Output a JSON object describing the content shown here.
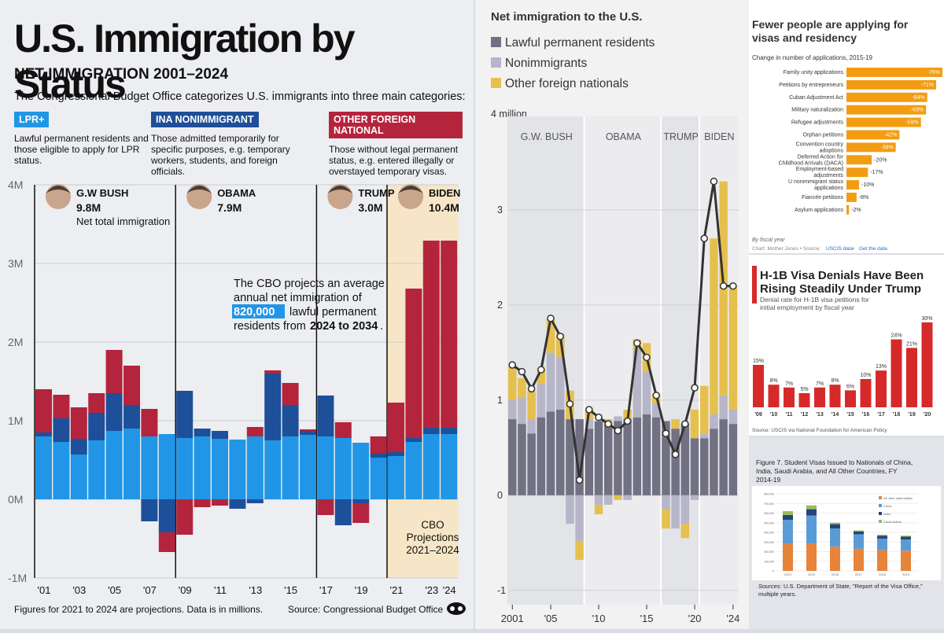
{
  "left_panel": {
    "title": "U.S. Immigration by Status",
    "subtitle": "NET IMMIGRATION 2001–2024",
    "intro": "The Congressional Budget Office categorizes U.S. immigrants into three main categories:",
    "categories": [
      {
        "tag": "LPR+",
        "color": "#2196e6",
        "desc": "Lawful permanent residents and those eligible to apply for LPR status."
      },
      {
        "tag": "INA NONIMMIGRANT",
        "color": "#1e4f99",
        "desc": "Those admitted temporarily for specific purposes, e.g. temporary workers, students, and foreign officials."
      },
      {
        "tag": "OTHER FOREIGN NATIONAL",
        "color": "#b5243d",
        "desc": "Those without legal permanent status, e.g. entered illegally or overstayed temporary visas."
      }
    ],
    "callout": {
      "line1": "The CBO projects an average",
      "line2": "annual net immigration of",
      "highlight": "820,000",
      "line3": "lawful permanent",
      "line4": "residents from ",
      "line4b": "2024 to 2034",
      "line4c": "."
    },
    "projection_label": [
      "CBO",
      "Projections",
      "2021–2024"
    ],
    "footnote": "Figures for 2021 to 2024 are projections. Data is in millions.",
    "source": "Source: Congressional Budget Office",
    "net_total_label": "Net total immigration"
  },
  "chart_data": [
    {
      "type": "bar",
      "title": "NET IMMIGRATION 2001–2024",
      "categories": [
        "2001",
        "2002",
        "2003",
        "2004",
        "2005",
        "2006",
        "2007",
        "2008",
        "2009",
        "2010",
        "2011",
        "2012",
        "2013",
        "2014",
        "2015",
        "2016",
        "2017",
        "2018",
        "2019",
        "2020",
        "2021",
        "2022",
        "2023",
        "2024"
      ],
      "tick_labels": [
        "'01",
        "",
        "'03",
        "",
        "'05",
        "",
        "'07",
        "",
        "'09",
        "",
        "'11",
        "",
        "'13",
        "",
        "'15",
        "",
        "'17",
        "",
        "'19",
        "",
        "'21",
        "",
        "'23",
        "'24"
      ],
      "series": [
        {
          "name": "LPR+",
          "color": "#2196e6",
          "values": [
            0.8,
            0.73,
            0.57,
            0.75,
            0.87,
            0.9,
            0.8,
            0.83,
            0.78,
            0.8,
            0.77,
            0.76,
            0.8,
            0.75,
            0.8,
            0.82,
            0.8,
            0.78,
            0.72,
            0.53,
            0.55,
            0.73,
            0.83,
            0.83
          ]
        },
        {
          "name": "INA NONIMMIGRANT",
          "color": "#1e4f99",
          "values": [
            0.05,
            0.3,
            0.2,
            0.35,
            0.48,
            0.3,
            -0.28,
            -0.42,
            0.6,
            0.1,
            0.1,
            -0.12,
            -0.05,
            0.85,
            0.4,
            0.05,
            0.52,
            -0.33,
            -0.05,
            0.05,
            0.05,
            0.05,
            0.08,
            0.08
          ]
        },
        {
          "name": "OTHER FOREIGN NATIONAL",
          "color": "#b5243d",
          "values": [
            0.55,
            0.3,
            0.4,
            0.25,
            0.55,
            0.5,
            0.35,
            -0.25,
            -0.45,
            -0.1,
            -0.08,
            0,
            0.12,
            0.04,
            0.28,
            0.02,
            -0.2,
            0.2,
            -0.25,
            0.22,
            0.63,
            1.9,
            2.38,
            2.38
          ]
        }
      ],
      "ylim": [
        -1,
        4
      ],
      "y_ticks": [
        "-1M",
        "0M",
        "1M",
        "2M",
        "3M",
        "4M"
      ],
      "presidents": [
        {
          "name": "G.W BUSH",
          "total": "9.8M"
        },
        {
          "name": "OBAMA",
          "total": "7.9M"
        },
        {
          "name": "TRUMP",
          "total": "3.0M"
        },
        {
          "name": "BIDEN",
          "total": "10.4M"
        }
      ]
    },
    {
      "type": "bar",
      "title": "Net immigration to the U.S.",
      "unit_label": "4 million",
      "x": [
        2001,
        2002,
        2003,
        2004,
        2005,
        2006,
        2007,
        2008,
        2009,
        2010,
        2011,
        2012,
        2013,
        2014,
        2015,
        2016,
        2017,
        2018,
        2019,
        2020,
        2021,
        2022,
        2023,
        2024
      ],
      "series": [
        {
          "name": "Lawful permanent residents",
          "color": "#727183",
          "values": [
            0.8,
            0.75,
            0.65,
            0.82,
            0.88,
            0.9,
            0.8,
            0.8,
            0.7,
            0.78,
            0.75,
            0.78,
            0.8,
            0.82,
            0.85,
            0.82,
            0.78,
            0.7,
            0.75,
            0.6,
            0.6,
            0.7,
            0.8,
            0.75
          ]
        },
        {
          "name": "Nonimmigrants",
          "color": "#b7b6c8",
          "values": [
            0.2,
            0.28,
            0.15,
            0.35,
            0.62,
            0.55,
            -0.3,
            -0.48,
            0.1,
            -0.1,
            -0.1,
            0.05,
            -0.05,
            0.72,
            0.45,
            0.15,
            -0.15,
            -0.35,
            -0.3,
            -0.05,
            0.05,
            0.15,
            0.25,
            0.15
          ]
        },
        {
          "name": "Other foreign nationals",
          "color": "#e6c04e",
          "values": [
            0.35,
            0.2,
            0.3,
            0.15,
            0.35,
            0.25,
            0.3,
            -0.2,
            0.1,
            -0.1,
            0.05,
            -0.05,
            0.1,
            0.1,
            0.3,
            0.1,
            -0.2,
            0.1,
            -0.15,
            0.3,
            0.5,
            1.85,
            2.25,
            1.3
          ]
        }
      ],
      "total_line": [
        1.37,
        1.3,
        1.12,
        1.32,
        1.86,
        1.67,
        0.96,
        0.16,
        0.9,
        0.82,
        0.75,
        0.68,
        0.78,
        1.6,
        1.45,
        1.05,
        0.65,
        0.43,
        0.75,
        1.13,
        2.7,
        3.3,
        2.2,
        2.2
      ],
      "x_ticks": [
        "2001",
        "'05",
        "'10",
        "'15",
        "'20",
        "'24"
      ],
      "y_ticks": [
        "-1",
        "0",
        "1",
        "2",
        "3"
      ],
      "ylim": [
        -1.2,
        4
      ],
      "eras": [
        "G.W. BUSH",
        "OBAMA",
        "TRUMP",
        "BIDEN"
      ]
    },
    {
      "type": "bar",
      "title": "Fewer people are applying for visas and residency",
      "subtitle": "Change in number of applications, 2015-19",
      "categories": [
        "Family unity applications",
        "Petitions by entrepreneurs",
        "Cuban Adjustment Act",
        "Military naturalization",
        "Refugee adjustments",
        "Orphan petitions",
        "Convention country adoptions",
        "Deferred Action for Childhood Arrivals (DACA)",
        "Employment-based adjustments",
        "U nonimmigrant status applications",
        "Fiancée petitions",
        "Asylum applications"
      ],
      "values": [
        -76,
        -71,
        -64,
        -63,
        -59,
        -42,
        -39,
        -20,
        -17,
        -10,
        -8,
        -2
      ],
      "value_labels": [
        "-76%",
        "-71%",
        "-64%",
        "-63%",
        "-59%",
        "-42%",
        "-39%",
        "-20%",
        "-17%",
        "-10%",
        "-8%",
        "-2%"
      ],
      "note": "By fiscal year",
      "credit": "Chart: Mother Jones • Source: ",
      "credit_link1": "USCIS data",
      "credit_sep": " • ",
      "credit_link2": "Get the data",
      "color": "#f39c12"
    },
    {
      "type": "bar",
      "title": "H-1B Visa Denials Have Been Rising Steadily Under Trump",
      "subtitle": "Denial rate for H-1B visa petitions for initial employment by fiscal year",
      "categories": [
        "'09",
        "'10",
        "'11",
        "'12",
        "'13",
        "'14",
        "'15",
        "'16",
        "'17",
        "'18",
        "'19",
        "'20"
      ],
      "values": [
        15,
        8,
        7,
        5,
        7,
        8,
        6,
        10,
        13,
        24,
        21,
        30
      ],
      "value_labels": [
        "15%",
        "8%",
        "7%",
        "5%",
        "7%",
        "8%",
        "6%",
        "10%",
        "13%",
        "24%",
        "21%",
        "30%"
      ],
      "source": "Source: USCIS via National Foundation for American Policy",
      "color": "#d62a2a"
    },
    {
      "type": "bar",
      "title": "Figure 7. Student Visas Issued to Nationals of China, India, Saudi Arabia, and All Other Countries, FY 2014-19",
      "categories": [
        "2014",
        "2015",
        "2016",
        "2017",
        "2018",
        "2019"
      ],
      "series": [
        {
          "name": "All other nationalities",
          "color": "#e8833a",
          "values": [
            280000,
            285000,
            250000,
            230000,
            215000,
            210000
          ]
        },
        {
          "name": "China",
          "color": "#5b9bd5",
          "values": [
            250000,
            290000,
            190000,
            150000,
            120000,
            115000
          ]
        },
        {
          "name": "India",
          "color": "#264478",
          "values": [
            50000,
            65000,
            45000,
            30000,
            30000,
            30000
          ]
        },
        {
          "name": "Saudi Arabia",
          "color": "#9bbb59",
          "values": [
            40000,
            40000,
            15000,
            10000,
            10000,
            10000
          ]
        }
      ],
      "y_ticks": [
        "0",
        "100,000",
        "200,000",
        "300,000",
        "400,000",
        "500,000",
        "600,000",
        "700,000",
        "800,000"
      ],
      "ylim": [
        0,
        800000
      ],
      "source_prefix": "Sources:",
      "source": " U.S. Department of State, \"Report of the Visa Office,\" multiple years."
    }
  ]
}
